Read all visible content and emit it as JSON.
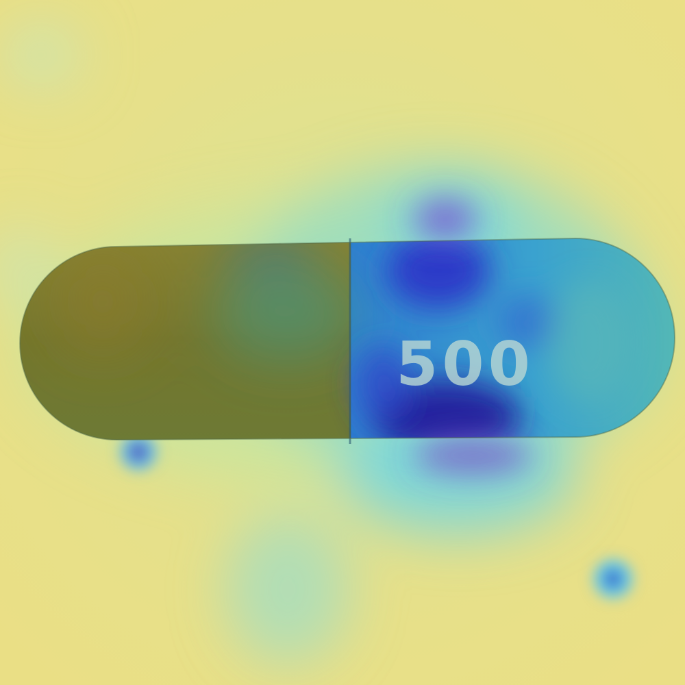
{
  "image": {
    "subject": "capsule",
    "imprint_text": "500",
    "colors": {
      "background_high": "#e8e08a",
      "background_low": "#cfe39a",
      "capsule_left": "#7d7b2e",
      "capsule_right": "#3ba6c8",
      "hotspot_deep": "#2a1f9a",
      "hotspot_mid": "#3a52d8",
      "hotspot_glow": "#5fd2e6"
    }
  }
}
